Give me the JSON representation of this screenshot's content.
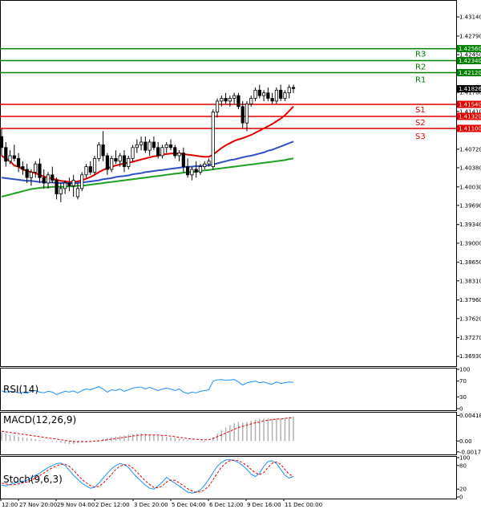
{
  "chart_data": {
    "type": "candlestick",
    "colors": {
      "bull": "#000000",
      "bear": "#000000",
      "ma_fast": "#e00000",
      "ma_mid": "#3050c8",
      "ma_slow": "#20a020",
      "resistance": "#008000",
      "support": "#e00000",
      "rsi": "#1e90ff",
      "macd_hist": "#b0b0b0",
      "macd_signal": "#e00000",
      "stoch_k": "#1e90ff",
      "stoch_d": "#e00000"
    },
    "price_axis": {
      "ylim": [
        1.3675,
        1.4345
      ],
      "ticks": [
        "1.43140",
        "1.42790",
        "1.42450",
        "1.42100",
        "1.41760",
        "1.41410",
        "1.41070",
        "1.40720",
        "1.40380",
        "1.40030",
        "1.39690",
        "1.39340",
        "1.39000",
        "1.38650",
        "1.38310",
        "1.37960",
        "1.37620",
        "1.37270",
        "1.36930"
      ]
    },
    "x_labels": [
      "12:00",
      "27 Nov 20:00",
      "29 Nov 04:00",
      "2 Dec 12:00",
      "3 Dec 20:00",
      "5 Dec 04:00",
      "6 Dec 12:00",
      "9 Dec 16:00",
      "11 Dec 00:00"
    ],
    "current_price": "1.41826",
    "levels": [
      {
        "name": "",
        "value": 1.4256,
        "label": "1.42560",
        "kind": "resistance"
      },
      {
        "name": "R3",
        "value": 1.4234,
        "label": "1.42340",
        "kind": "resistance"
      },
      {
        "name": "R2",
        "value": 1.4234,
        "label": "",
        "kind": "resistance"
      },
      {
        "name": "R1",
        "value": 1.4212,
        "label": "1.42120",
        "kind": "resistance"
      },
      {
        "name": "S1",
        "value": 1.4154,
        "label": "1.41540",
        "kind": "support"
      },
      {
        "name": "S2",
        "value": 1.4132,
        "label": "1.41320",
        "kind": "support"
      },
      {
        "name": "S3",
        "value": 1.411,
        "label": "1.41100",
        "kind": "support"
      }
    ],
    "ohlc": [
      [
        1.4095,
        1.411,
        1.406,
        1.4075
      ],
      [
        1.4075,
        1.4085,
        1.404,
        1.405
      ],
      [
        1.405,
        1.407,
        1.4045,
        1.406
      ],
      [
        1.406,
        1.408,
        1.405,
        1.4055
      ],
      [
        1.4055,
        1.4065,
        1.403,
        1.404
      ],
      [
        1.404,
        1.405,
        1.4025,
        1.4035
      ],
      [
        1.4035,
        1.4045,
        1.401,
        1.402
      ],
      [
        1.402,
        1.4035,
        1.4005,
        1.403
      ],
      [
        1.403,
        1.405,
        1.402,
        1.4045
      ],
      [
        1.4045,
        1.4055,
        1.401,
        1.402
      ],
      [
        1.402,
        1.4035,
        1.4,
        1.401
      ],
      [
        1.401,
        1.403,
        1.4,
        1.4025
      ],
      [
        1.4025,
        1.404,
        1.401,
        1.4015
      ],
      [
        1.4015,
        1.402,
        1.398,
        1.399
      ],
      [
        1.399,
        1.401,
        1.3975,
        1.4
      ],
      [
        1.4,
        1.4015,
        1.399,
        1.401
      ],
      [
        1.401,
        1.402,
        1.3995,
        1.4005
      ],
      [
        1.4005,
        1.4025,
        1.3985,
        1.4015
      ],
      [
        1.3985,
        1.401,
        1.398,
        1.4
      ],
      [
        1.4,
        1.403,
        1.3995,
        1.4025
      ],
      [
        1.4025,
        1.4045,
        1.402,
        1.404
      ],
      [
        1.404,
        1.405,
        1.4025,
        1.403
      ],
      [
        1.403,
        1.406,
        1.4025,
        1.4055
      ],
      [
        1.4055,
        1.4085,
        1.405,
        1.408
      ],
      [
        1.408,
        1.4105,
        1.405,
        1.406
      ],
      [
        1.406,
        1.4065,
        1.4025,
        1.4035
      ],
      [
        1.4035,
        1.406,
        1.403,
        1.4055
      ],
      [
        1.4055,
        1.407,
        1.4045,
        1.405
      ],
      [
        1.405,
        1.4065,
        1.404,
        1.406
      ],
      [
        1.406,
        1.407,
        1.403,
        1.404
      ],
      [
        1.404,
        1.406,
        1.4035,
        1.4055
      ],
      [
        1.4055,
        1.408,
        1.405,
        1.4075
      ],
      [
        1.4075,
        1.409,
        1.4065,
        1.408
      ],
      [
        1.408,
        1.4095,
        1.407,
        1.4085
      ],
      [
        1.4085,
        1.4095,
        1.4065,
        1.407
      ],
      [
        1.407,
        1.409,
        1.406,
        1.4085
      ],
      [
        1.4085,
        1.4095,
        1.407,
        1.4075
      ],
      [
        1.4075,
        1.4085,
        1.4055,
        1.406
      ],
      [
        1.406,
        1.408,
        1.4055,
        1.4075
      ],
      [
        1.4075,
        1.4085,
        1.4065,
        1.408
      ],
      [
        1.408,
        1.409,
        1.407,
        1.4075
      ],
      [
        1.4075,
        1.408,
        1.4055,
        1.406
      ],
      [
        1.406,
        1.407,
        1.405,
        1.4065
      ],
      [
        1.4065,
        1.4075,
        1.403,
        1.404
      ],
      [
        1.404,
        1.4055,
        1.402,
        1.4025
      ],
      [
        1.4025,
        1.404,
        1.4015,
        1.4035
      ],
      [
        1.4035,
        1.405,
        1.402,
        1.403
      ],
      [
        1.403,
        1.4045,
        1.4025,
        1.404
      ],
      [
        1.404,
        1.405,
        1.4035,
        1.4045
      ],
      [
        1.4045,
        1.4055,
        1.404,
        1.405
      ],
      [
        1.404,
        1.4145,
        1.4035,
        1.414
      ],
      [
        1.414,
        1.4165,
        1.413,
        1.416
      ],
      [
        1.416,
        1.417,
        1.415,
        1.4165
      ],
      [
        1.4165,
        1.4175,
        1.4155,
        1.416
      ],
      [
        1.416,
        1.417,
        1.415,
        1.4165
      ],
      [
        1.4165,
        1.4175,
        1.4155,
        1.417
      ],
      [
        1.417,
        1.4175,
        1.4145,
        1.415
      ],
      [
        1.415,
        1.416,
        1.411,
        1.412
      ],
      [
        1.412,
        1.416,
        1.4105,
        1.4155
      ],
      [
        1.4155,
        1.417,
        1.415,
        1.4165
      ],
      [
        1.4165,
        1.4185,
        1.416,
        1.418
      ],
      [
        1.418,
        1.419,
        1.4165,
        1.417
      ],
      [
        1.417,
        1.418,
        1.416,
        1.4175
      ],
      [
        1.4175,
        1.4185,
        1.416,
        1.4165
      ],
      [
        1.4165,
        1.4175,
        1.4155,
        1.416
      ],
      [
        1.416,
        1.4185,
        1.4155,
        1.418
      ],
      [
        1.418,
        1.419,
        1.416,
        1.4165
      ],
      [
        1.4165,
        1.418,
        1.416,
        1.4175
      ],
      [
        1.4175,
        1.419,
        1.4165,
        1.4185
      ],
      [
        1.4185,
        1.419,
        1.4175,
        1.4183
      ]
    ],
    "moving_averages": [
      {
        "key": "ma_fast",
        "values": [
          1.406,
          1.4055,
          1.405,
          1.4042,
          1.404,
          1.4035,
          1.4032,
          1.403,
          1.4028,
          1.4025,
          1.4022,
          1.402,
          1.4018,
          1.4016,
          1.4014,
          1.4013,
          1.4012,
          1.4012,
          1.4013,
          1.4015,
          1.4018,
          1.4021,
          1.4025,
          1.403,
          1.4034,
          1.4037,
          1.404,
          1.4042,
          1.4044,
          1.4046,
          1.4047,
          1.4049,
          1.4051,
          1.4053,
          1.4055,
          1.4057,
          1.4059,
          1.406,
          1.4062,
          1.4063,
          1.4064,
          1.4064,
          1.4064,
          1.4063,
          1.4062,
          1.4061,
          1.406,
          1.4059,
          1.4058,
          1.4058,
          1.4062,
          1.4068,
          1.4074,
          1.4079,
          1.4083,
          1.4087,
          1.409,
          1.4092,
          1.4095,
          1.4098,
          1.4102,
          1.4106,
          1.411,
          1.4114,
          1.4118,
          1.4123,
          1.4128,
          1.4134,
          1.4142,
          1.415
        ]
      },
      {
        "key": "ma_mid",
        "values": [
          1.402,
          1.4019,
          1.4018,
          1.4017,
          1.4016,
          1.4015,
          1.4014,
          1.4014,
          1.4013,
          1.4012,
          1.4012,
          1.4011,
          1.4011,
          1.401,
          1.401,
          1.401,
          1.401,
          1.401,
          1.401,
          1.4011,
          1.4012,
          1.4013,
          1.4014,
          1.4015,
          1.4017,
          1.4018,
          1.4019,
          1.4021,
          1.4022,
          1.4023,
          1.4024,
          1.4026,
          1.4027,
          1.4028,
          1.403,
          1.4031,
          1.4032,
          1.4033,
          1.4034,
          1.4035,
          1.4036,
          1.4037,
          1.4038,
          1.4039,
          1.404,
          1.404,
          1.4041,
          1.4041,
          1.4042,
          1.4042,
          1.4044,
          1.4046,
          1.4048,
          1.405,
          1.4052,
          1.4053,
          1.4055,
          1.4057,
          1.4059,
          1.406,
          1.4062,
          1.4064,
          1.4066,
          1.4069,
          1.4071,
          1.4074,
          1.4077,
          1.408,
          1.4083,
          1.4086
        ]
      },
      {
        "key": "ma_slow",
        "values": [
          1.3985,
          1.3987,
          1.3989,
          1.3991,
          1.3993,
          1.3995,
          1.3997,
          1.3999,
          1.4,
          1.4001,
          1.4002,
          1.4002,
          1.4003,
          1.4003,
          1.4003,
          1.4003,
          1.4004,
          1.4004,
          1.4005,
          1.4005,
          1.4006,
          1.4007,
          1.4008,
          1.4009,
          1.401,
          1.4011,
          1.4012,
          1.4013,
          1.4014,
          1.4015,
          1.4016,
          1.4017,
          1.4018,
          1.4019,
          1.402,
          1.4021,
          1.4022,
          1.4023,
          1.4024,
          1.4025,
          1.4026,
          1.4027,
          1.4028,
          1.4029,
          1.403,
          1.403,
          1.4031,
          1.4032,
          1.4033,
          1.4034,
          1.4035,
          1.4036,
          1.4037,
          1.4038,
          1.4039,
          1.404,
          1.4041,
          1.4042,
          1.4043,
          1.4044,
          1.4045,
          1.4046,
          1.4047,
          1.4048,
          1.4049,
          1.405,
          1.4051,
          1.4052,
          1.4054,
          1.4055
        ]
      }
    ],
    "indicators": [
      {
        "key": "rsi",
        "label": "RSI(14)",
        "ylim": [
          0,
          100
        ],
        "ticks": [
          "100",
          "70",
          "30",
          "0"
        ],
        "tick_values": [
          100,
          70,
          30,
          0
        ],
        "series": [
          {
            "color_key": "rsi",
            "values": [
              45,
              42,
              44,
              43,
              40,
              41,
              39,
              44,
              46,
              42,
              40,
              44,
              42,
              36,
              40,
              44,
              42,
              45,
              40,
              46,
              50,
              48,
              52,
              56,
              50,
              42,
              48,
              46,
              50,
              44,
              48,
              52,
              54,
              55,
              50,
              54,
              50,
              46,
              50,
              52,
              50,
              46,
              50,
              42,
              38,
              42,
              40,
              44,
              46,
              48,
              70,
              73,
              74,
              72,
              73,
              74,
              68,
              60,
              66,
              68,
              70,
              66,
              68,
              64,
              62,
              68,
              64,
              66,
              68,
              67
            ]
          }
        ]
      },
      {
        "key": "macd",
        "label": "MACD(12,26,9)",
        "ylim": [
          -0.00194,
          0.00451
        ],
        "ticks": [
          "0.004181",
          "0.00",
          "-0.001794"
        ],
        "tick_values": [
          0.004181,
          0.0,
          -0.001794
        ],
        "bars": [
          0.0014,
          0.0012,
          0.001,
          0.0009,
          0.0007,
          0.0006,
          0.0005,
          0.0004,
          0.0003,
          0.0002,
          0.0001,
          0.0,
          -0.0001,
          -0.0002,
          -0.0003,
          -0.0004,
          -0.0005,
          -0.0005,
          -0.0004,
          -0.0003,
          -0.0002,
          -0.0001,
          0.0,
          0.0002,
          0.0004,
          0.0005,
          0.0006,
          0.0007,
          0.0008,
          0.0009,
          0.001,
          0.0011,
          0.0012,
          0.0012,
          0.0012,
          0.0011,
          0.001,
          0.0009,
          0.0008,
          0.0007,
          0.0006,
          0.0005,
          0.0004,
          0.0003,
          0.0002,
          0.0001,
          0.0,
          -0.0001,
          -0.0001,
          0.0,
          0.0006,
          0.0012,
          0.0018,
          0.0022,
          0.0026,
          0.0029,
          0.0031,
          0.003,
          0.0031,
          0.0033,
          0.0035,
          0.0036,
          0.0037,
          0.0037,
          0.0036,
          0.0037,
          0.0037,
          0.0038,
          0.0039,
          0.004
        ],
        "series": [
          {
            "color_key": "macd_signal",
            "dashed": true,
            "values": [
              0.0016,
              0.0015,
              0.0014,
              0.0013,
              0.0012,
              0.0011,
              0.001,
              0.0009,
              0.0008,
              0.0007,
              0.0006,
              0.0005,
              0.0004,
              0.0003,
              0.0002,
              0.0001,
              0.0,
              -0.0001,
              -0.0001,
              -0.0001,
              -0.0001,
              -0.0001,
              0.0,
              0.0,
              0.0001,
              0.0002,
              0.0003,
              0.0004,
              0.0005,
              0.0006,
              0.0007,
              0.0008,
              0.0009,
              0.001,
              0.001,
              0.001,
              0.001,
              0.001,
              0.0009,
              0.0009,
              0.0008,
              0.0007,
              0.0006,
              0.0005,
              0.0004,
              0.0003,
              0.0003,
              0.0002,
              0.0002,
              0.0002,
              0.0004,
              0.0007,
              0.001,
              0.0013,
              0.0016,
              0.0019,
              0.0022,
              0.0024,
              0.0026,
              0.0028,
              0.003,
              0.0031,
              0.0033,
              0.0034,
              0.0035,
              0.0036,
              0.0036,
              0.0037,
              0.0038,
              0.0038
            ]
          }
        ]
      },
      {
        "key": "stoch",
        "label": "Stoch(9,6,3)",
        "ylim": [
          0,
          100
        ],
        "ticks": [
          "100",
          "80",
          "20",
          "0"
        ],
        "tick_values": [
          100,
          80,
          20,
          0
        ],
        "series": [
          {
            "color_key": "stoch_k",
            "values": [
              30,
              28,
              32,
              35,
              38,
              40,
              42,
              48,
              55,
              60,
              68,
              75,
              80,
              85,
              86,
              80,
              68,
              55,
              45,
              35,
              28,
              22,
              25,
              35,
              48,
              60,
              72,
              80,
              85,
              82,
              75,
              62,
              50,
              40,
              30,
              22,
              20,
              28,
              38,
              50,
              42,
              35,
              28,
              20,
              12,
              10,
              12,
              18,
              30,
              45,
              62,
              78,
              88,
              94,
              95,
              92,
              88,
              80,
              70,
              58,
              52,
              60,
              78,
              90,
              92,
              85,
              70,
              55,
              48,
              52
            ]
          },
          {
            "color_key": "stoch_d",
            "dashed": true,
            "values": [
              35,
              33,
              31,
              31,
              33,
              36,
              38,
              42,
              48,
              54,
              61,
              68,
              74,
              79,
              83,
              83,
              78,
              68,
              56,
              45,
              36,
              29,
              25,
              27,
              35,
              46,
              58,
              70,
              78,
              82,
              81,
              74,
              63,
              52,
              41,
              32,
              24,
              23,
              28,
              38,
              43,
              42,
              36,
              29,
              21,
              15,
              12,
              13,
              18,
              28,
              44,
              60,
              76,
              86,
              92,
              94,
              92,
              87,
              80,
              70,
              61,
              57,
              62,
              75,
              86,
              89,
              83,
              70,
              58,
              52
            ]
          }
        ]
      }
    ]
  }
}
